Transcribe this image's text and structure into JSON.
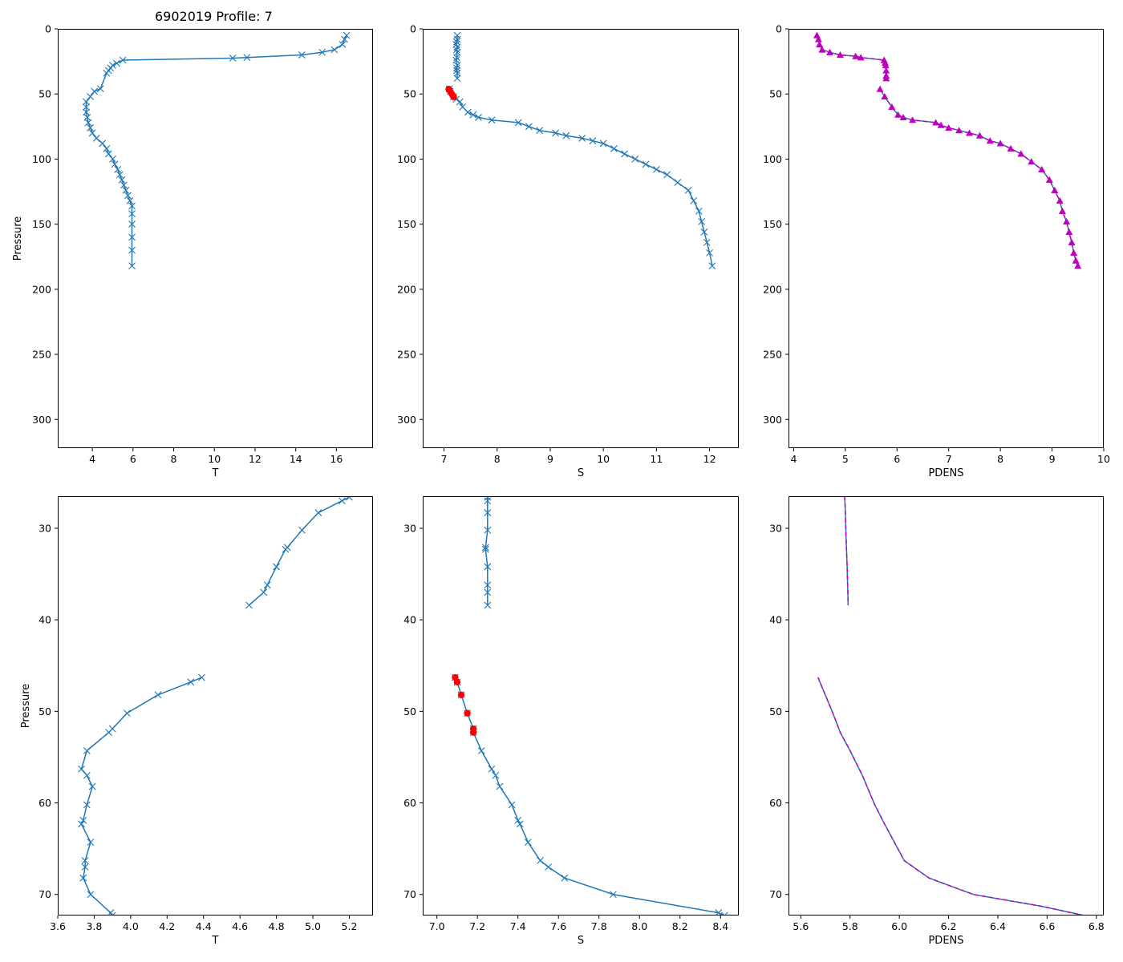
{
  "figure": {
    "title": "6902019 Profile: 7"
  },
  "colors": {
    "line": "#1f77b4",
    "flagged": "#ff0000",
    "density": "#bf00bf"
  },
  "chart_data": [
    {
      "type": "line",
      "title": "6902019 Profile: 7",
      "xlabel": "T",
      "ylabel": "Pressure",
      "xlim": [
        2.3,
        17.8
      ],
      "ylim": [
        322,
        0
      ],
      "y_inverted": true,
      "xticks": [
        4,
        6,
        8,
        10,
        12,
        14,
        16
      ],
      "yticks": [
        0,
        50,
        100,
        150,
        200,
        250,
        300
      ],
      "series": [
        {
          "name": "T",
          "marker": "x",
          "x": [
            16.5,
            16.4,
            16.3,
            15.9,
            15.3,
            14.3,
            11.6,
            10.9,
            5.5,
            5.2,
            5.0,
            4.9,
            4.8,
            4.7,
            4.4,
            4.1,
            3.9,
            3.7,
            3.7,
            3.7,
            3.75,
            3.8,
            3.9,
            4.0,
            4.2,
            4.5,
            4.7,
            4.8,
            5.0,
            5.1,
            5.25,
            5.35,
            5.45,
            5.55,
            5.65,
            5.75,
            5.85,
            5.95,
            5.95,
            5.95,
            5.95,
            5.95,
            5.95
          ],
          "y": [
            5,
            8,
            12,
            16,
            18,
            20,
            22,
            22.5,
            24,
            26.5,
            28,
            30,
            32,
            34,
            46,
            48,
            52,
            56,
            60,
            64,
            68,
            72,
            76,
            80,
            84,
            88,
            92,
            96,
            100,
            104,
            108,
            112,
            116,
            120,
            124,
            128,
            132,
            136,
            142,
            150,
            160,
            170,
            182
          ]
        }
      ]
    },
    {
      "type": "line",
      "xlabel": "S",
      "ylabel": "",
      "xlim": [
        6.6,
        12.55
      ],
      "ylim": [
        322,
        0
      ],
      "y_inverted": true,
      "xticks": [
        7,
        8,
        9,
        10,
        11,
        12
      ],
      "yticks": [
        0,
        50,
        100,
        150,
        200,
        250,
        300
      ],
      "series": [
        {
          "name": "S",
          "marker": "x",
          "x": [
            7.25,
            7.25,
            7.24,
            7.23,
            7.25,
            7.24,
            7.25,
            7.24,
            7.23,
            7.25,
            7.24,
            7.24,
            7.25,
            7.25
          ],
          "y": [
            5,
            8,
            10,
            12,
            14,
            16,
            18,
            22,
            24,
            28,
            30,
            32,
            34,
            38
          ]
        },
        {
          "name": "S",
          "marker": "x",
          "x": [
            7.1,
            7.12,
            7.18,
            7.23,
            7.3,
            7.35,
            7.45,
            7.55,
            7.65,
            7.9,
            8.4,
            8.6,
            8.8,
            9.1,
            9.3,
            9.6,
            9.8,
            10.0,
            10.2,
            10.4,
            10.6,
            10.8,
            11.0,
            11.2,
            11.4,
            11.6,
            11.7,
            11.8,
            11.85,
            11.9,
            11.95,
            12.0,
            12.05
          ],
          "y": [
            46,
            48,
            52,
            54,
            56,
            60,
            64,
            66,
            68,
            70,
            72,
            75,
            78,
            80,
            82,
            84,
            86,
            88,
            92,
            96,
            100,
            104,
            108,
            112,
            118,
            124,
            132,
            140,
            148,
            156,
            164,
            172,
            182
          ]
        },
        {
          "name": "flagged",
          "marker": "o",
          "x": [
            7.09,
            7.1,
            7.12,
            7.15,
            7.18,
            7.18
          ],
          "y": [
            46.3,
            46.8,
            48.2,
            50.2,
            52.0,
            52.3
          ]
        }
      ]
    },
    {
      "type": "line",
      "xlabel": "PDENS",
      "ylabel": "",
      "xlim": [
        3.9,
        10.0
      ],
      "ylim": [
        322,
        0
      ],
      "y_inverted": true,
      "xticks": [
        4,
        5,
        6,
        7,
        8,
        9,
        10
      ],
      "yticks": [
        0,
        50,
        100,
        150,
        200,
        250,
        300
      ],
      "series": [
        {
          "name": "PDENS",
          "marker": "^",
          "x": [
            4.45,
            4.48,
            4.5,
            4.55,
            4.7,
            4.9,
            5.2,
            5.3,
            5.75,
            5.77,
            5.78,
            5.79,
            5.79,
            5.79
          ],
          "y": [
            5,
            8,
            12,
            16,
            18,
            20,
            21,
            22,
            24,
            26,
            28,
            32,
            36,
            38
          ]
        },
        {
          "name": "PDENS",
          "marker": "^",
          "x": [
            5.67,
            5.76,
            5.9,
            6.02,
            6.12,
            6.3,
            6.75,
            6.85,
            7.0,
            7.2,
            7.4,
            7.6,
            7.8,
            8.0,
            8.2,
            8.4,
            8.6,
            8.8,
            8.95,
            9.05,
            9.15,
            9.2,
            9.28,
            9.33,
            9.38,
            9.42,
            9.46,
            9.5
          ],
          "y": [
            46.3,
            52,
            60,
            66,
            68,
            70,
            72,
            74,
            76,
            78,
            80,
            82,
            86,
            88,
            92,
            96,
            102,
            108,
            116,
            124,
            132,
            140,
            148,
            156,
            164,
            172,
            178,
            182
          ]
        }
      ]
    },
    {
      "type": "line",
      "xlabel": "T",
      "ylabel": "Pressure",
      "xlim": [
        3.6,
        5.33
      ],
      "ylim": [
        72.3,
        26.5
      ],
      "y_inverted": true,
      "xticks": [
        3.6,
        3.8,
        4.0,
        4.2,
        4.4,
        4.6,
        4.8,
        5.0,
        5.2
      ],
      "yticks": [
        30,
        40,
        50,
        60,
        70
      ],
      "series": [
        {
          "name": "T",
          "marker": "x",
          "x": [
            5.2,
            5.16,
            5.03,
            4.94,
            4.86,
            4.85,
            4.8,
            4.75,
            4.73,
            4.65
          ],
          "y": [
            26.6,
            27.0,
            28.3,
            30.2,
            32.1,
            32.3,
            34.2,
            36.2,
            37.0,
            38.4
          ]
        },
        {
          "name": "T",
          "marker": "x",
          "x": [
            4.39,
            4.33,
            4.15,
            3.98,
            3.9,
            3.88,
            3.76,
            3.73,
            3.76,
            3.79,
            3.76,
            3.74,
            3.73,
            3.78,
            3.75,
            3.75,
            3.74,
            3.78,
            3.89,
            3.9
          ],
          "y": [
            46.3,
            46.8,
            48.2,
            50.2,
            51.9,
            52.3,
            54.3,
            56.3,
            57.0,
            58.2,
            60.2,
            61.9,
            62.3,
            64.3,
            66.3,
            67.0,
            68.2,
            70.0,
            72.0,
            72.3
          ]
        }
      ]
    },
    {
      "type": "line",
      "xlabel": "S",
      "ylabel": "",
      "xlim": [
        6.93,
        8.49
      ],
      "ylim": [
        72.3,
        26.5
      ],
      "y_inverted": true,
      "xticks": [
        7.0,
        7.2,
        7.4,
        7.6,
        7.8,
        8.0,
        8.2,
        8.4
      ],
      "yticks": [
        30,
        40,
        50,
        60,
        70
      ],
      "series": [
        {
          "name": "S",
          "marker": "x",
          "x": [
            7.25,
            7.25,
            7.25,
            7.25,
            7.24,
            7.24,
            7.25,
            7.25,
            7.25,
            7.25
          ],
          "y": [
            26.6,
            27.0,
            28.3,
            30.2,
            32.1,
            32.3,
            34.2,
            36.2,
            37.0,
            38.4
          ]
        },
        {
          "name": "S",
          "marker": "x",
          "x": [
            7.09,
            7.1,
            7.12,
            7.15,
            7.18,
            7.18,
            7.22,
            7.27,
            7.29,
            7.31,
            7.37,
            7.4,
            7.41,
            7.45,
            7.51,
            7.55,
            7.63,
            7.87,
            8.39,
            8.42
          ],
          "y": [
            46.3,
            46.8,
            48.2,
            50.2,
            51.9,
            52.3,
            54.3,
            56.3,
            57.0,
            58.2,
            60.2,
            61.9,
            62.3,
            64.3,
            66.3,
            67.0,
            68.2,
            70.0,
            72.0,
            72.3
          ]
        },
        {
          "name": "flagged",
          "marker": "o",
          "x": [
            7.09,
            7.1,
            7.12,
            7.15,
            7.18,
            7.18
          ],
          "y": [
            46.3,
            46.8,
            48.2,
            50.2,
            51.9,
            52.3
          ]
        }
      ]
    },
    {
      "type": "line",
      "xlabel": "PDENS",
      "ylabel": "",
      "xlim": [
        5.55,
        6.83
      ],
      "ylim": [
        72.3,
        26.5
      ],
      "y_inverted": true,
      "xticks": [
        5.6,
        5.8,
        6.0,
        6.2,
        6.4,
        6.6,
        6.8
      ],
      "yticks": [
        30,
        40,
        50,
        60,
        70
      ],
      "series": [
        {
          "name": "PDENS",
          "marker": "",
          "x": [
            5.777,
            5.779,
            5.781,
            5.783,
            5.785,
            5.788,
            5.79,
            5.791,
            5.792
          ],
          "y": [
            26.5,
            27.0,
            28.3,
            30.2,
            32.1,
            34.2,
            36.2,
            37.0,
            38.4
          ]
        },
        {
          "name": "PDENS",
          "marker": "",
          "x": [
            5.67,
            5.73,
            5.76,
            5.8,
            5.85,
            5.9,
            5.94,
            6.02,
            6.12,
            6.3,
            6.58,
            6.75
          ],
          "y": [
            46.3,
            50.2,
            52.3,
            54.3,
            57.0,
            60.2,
            62.3,
            66.3,
            68.2,
            70.0,
            71.3,
            72.3
          ]
        }
      ]
    }
  ]
}
